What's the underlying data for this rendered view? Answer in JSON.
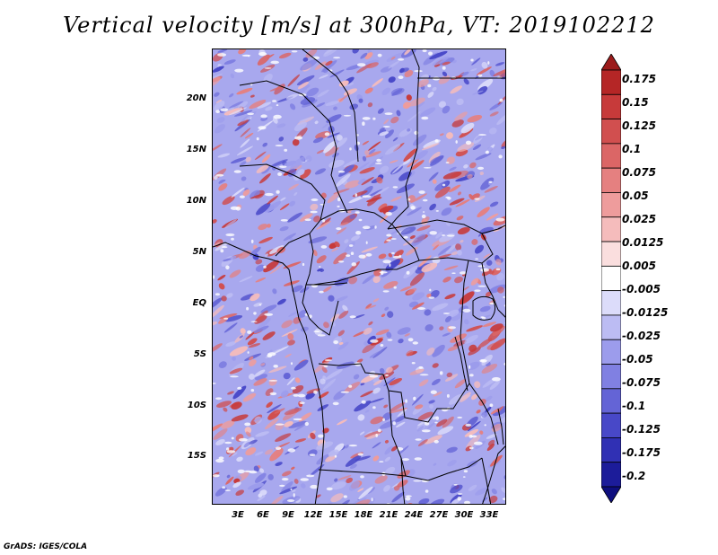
{
  "title": "Vertical velocity [m/s] at 300hPa, VT: 2019102212",
  "credit": "GrADS: IGES/COLA",
  "map": {
    "variable": "Vertical velocity",
    "units": "m/s",
    "level": "300hPa",
    "valid_time": "2019102212",
    "lat_labels": [
      "20N",
      "15N",
      "10N",
      "5N",
      "EQ",
      "5S",
      "10S",
      "15S"
    ],
    "lon_labels": [
      "3E",
      "6E",
      "9E",
      "12E",
      "15E",
      "18E",
      "21E",
      "24E",
      "27E",
      "30E",
      "33E"
    ]
  },
  "colorbar": {
    "levels": [
      "0.175",
      "0.15",
      "0.125",
      "0.1",
      "0.075",
      "0.05",
      "0.025",
      "0.0125",
      "0.005",
      "-0.005",
      "-0.0125",
      "-0.025",
      "-0.05",
      "-0.075",
      "-0.1",
      "-0.125",
      "-0.175",
      "-0.2"
    ],
    "colors": [
      "#9b1b1b",
      "#b52626",
      "#c73a3a",
      "#d14f4f",
      "#db6666",
      "#e58080",
      "#ee9c9c",
      "#f5bcbc",
      "#fadede",
      "#ffffff",
      "#dcdcfa",
      "#bcbcf3",
      "#9c9cec",
      "#8080e2",
      "#6464d6",
      "#4848c8",
      "#3030b4",
      "#1c1c9a",
      "#0e0e7e"
    ]
  }
}
